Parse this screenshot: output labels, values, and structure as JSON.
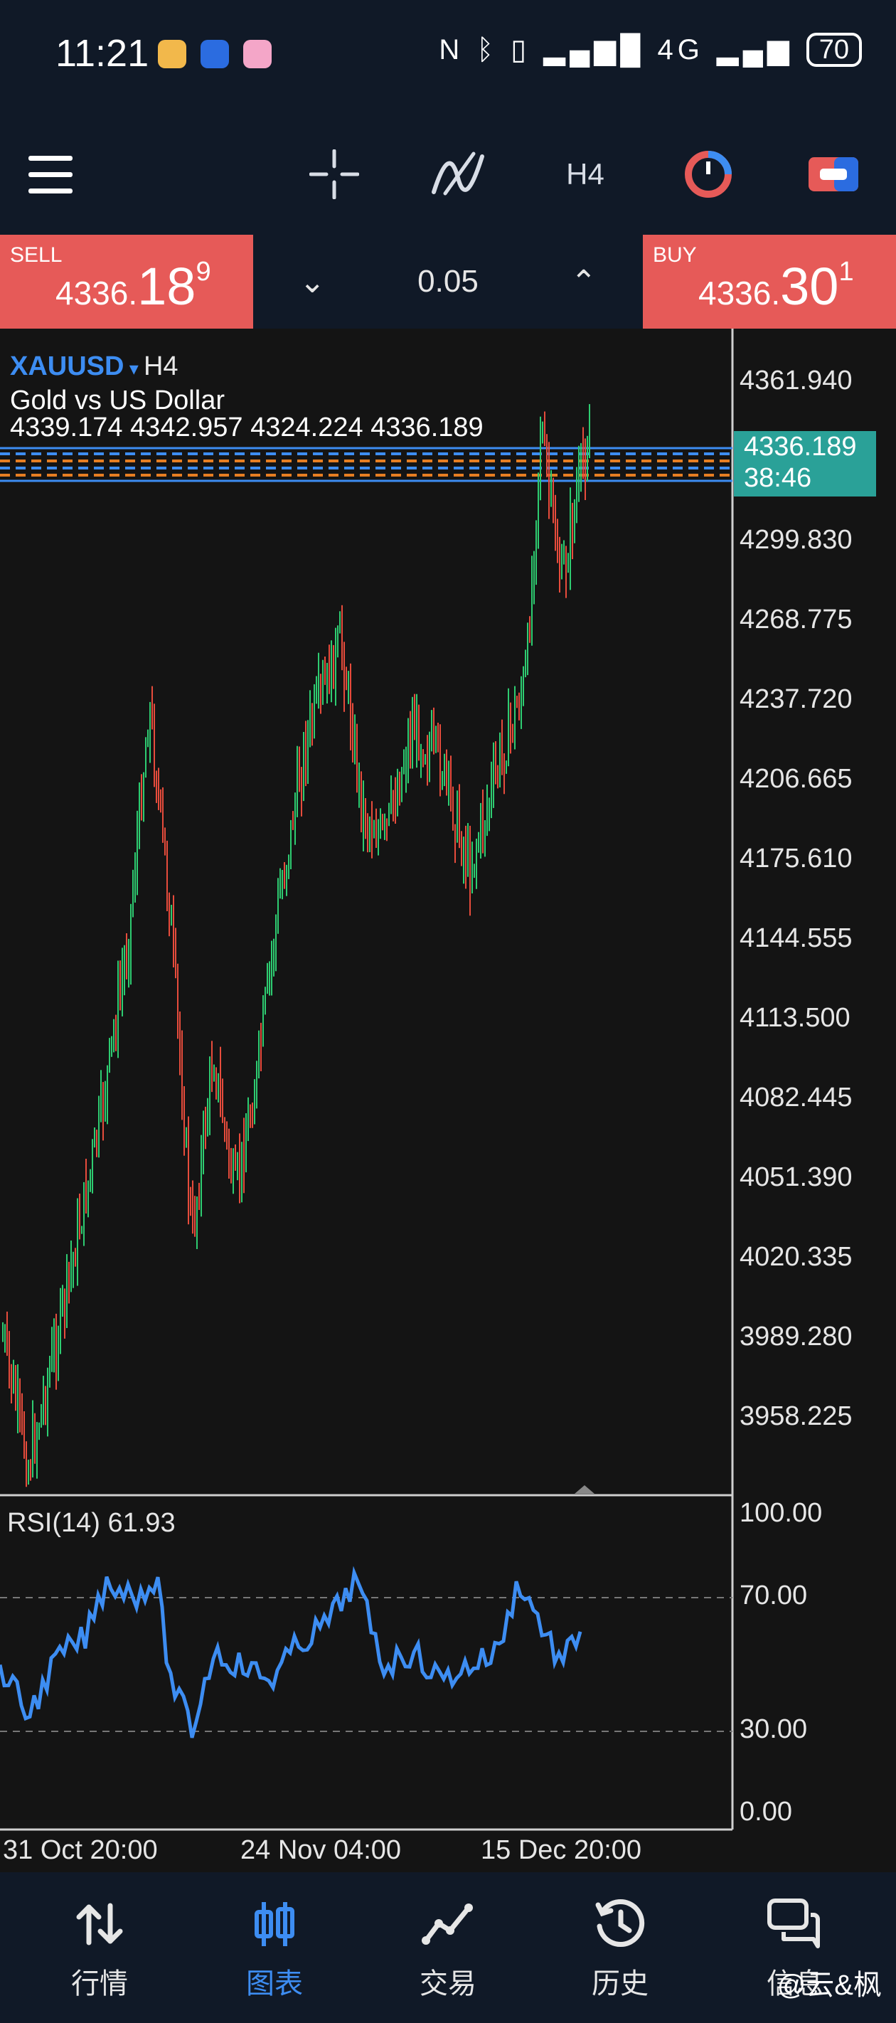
{
  "status": {
    "time": "11:21",
    "network": "4G",
    "battery": "70"
  },
  "toolbar": {
    "timeframe": "H4"
  },
  "trade": {
    "sell_label": "SELL",
    "sell_small": "4336.",
    "sell_big": "18",
    "sell_sup": "9",
    "buy_label": "BUY",
    "buy_small": "4336.",
    "buy_big": "30",
    "buy_sup": "1",
    "lot": "0.05"
  },
  "chart": {
    "symbol": "XAUUSD",
    "timeframe": "H4",
    "name": "Gold vs US Dollar",
    "ohlc": "4339.174 4342.957 4324.224 4336.189",
    "current_price": "4336.189",
    "countdown": "38:46",
    "price_labels": [
      "4361.940",
      "4299.830",
      "4268.775",
      "4237.720",
      "4206.665",
      "4175.610",
      "4144.555",
      "4113.500",
      "4082.445",
      "4051.390",
      "4020.335",
      "3989.280",
      "3958.225"
    ],
    "rsi_title": "RSI(14) 61.93",
    "rsi_labels": [
      "100.00",
      "70.00",
      "30.00",
      "0.00"
    ],
    "time_labels": [
      "31 Oct 20:00",
      "24 Nov 04:00",
      "15 Dec 20:00"
    ],
    "colors": {
      "up": "#2ecc71",
      "down": "#e74c3c",
      "rsi": "#3d8df2"
    }
  },
  "nav": {
    "items": [
      {
        "label": "行情",
        "icon": "quotes-arrows-icon"
      },
      {
        "label": "图表",
        "icon": "chart-candles-icon"
      },
      {
        "label": "交易",
        "icon": "trade-line-icon"
      },
      {
        "label": "历史",
        "icon": "history-clock-icon"
      },
      {
        "label": "信息",
        "icon": "messages-icon"
      }
    ],
    "active": "图表"
  },
  "watermark": "@云&枫"
}
